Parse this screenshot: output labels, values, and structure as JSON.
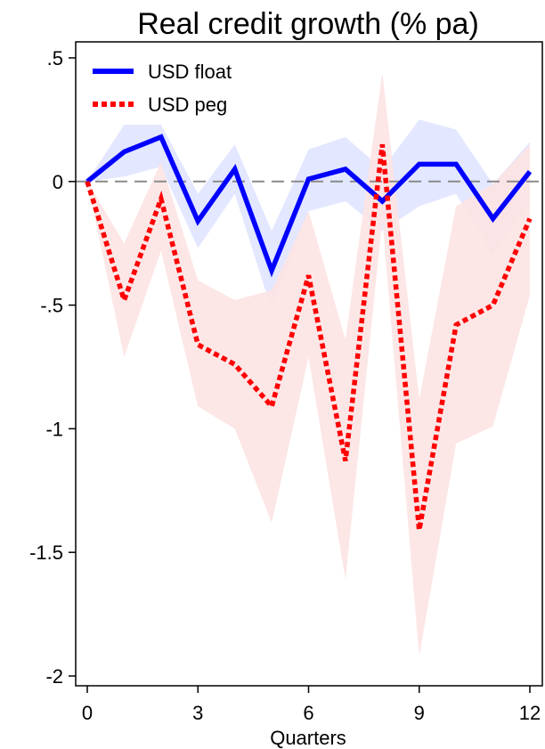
{
  "chart_data": {
    "type": "line",
    "title": "Real credit growth (% pa)",
    "xlabel": "Quarters",
    "ylabel": "",
    "xlim": [
      0,
      12
    ],
    "ylim": [
      -2,
      0.5
    ],
    "x_ticks": [
      0,
      3,
      6,
      9,
      12
    ],
    "x_tick_labels": [
      "0",
      "3",
      "6",
      "9",
      "12"
    ],
    "y_ticks": [
      0.5,
      0,
      -0.5,
      -1,
      -1.5,
      -2
    ],
    "y_tick_labels": [
      ".5",
      "0",
      "-.5",
      "-1",
      "-1.5",
      "-2"
    ],
    "zero_line": true,
    "grid": false,
    "legend_position": "top-left",
    "x": [
      0,
      1,
      2,
      3,
      4,
      5,
      6,
      7,
      8,
      9,
      10,
      11,
      12
    ],
    "series": [
      {
        "name": "USD float",
        "color": "#0000ff",
        "band_color": "#e0e4ff",
        "style": "solid",
        "values": [
          0.0,
          0.12,
          0.18,
          -0.16,
          0.05,
          -0.36,
          0.01,
          0.05,
          -0.08,
          0.07,
          0.07,
          -0.15,
          0.04
        ],
        "lower": [
          0.0,
          0.02,
          0.06,
          -0.27,
          -0.05,
          -0.52,
          -0.12,
          -0.08,
          -0.2,
          -0.1,
          -0.05,
          -0.3,
          -0.09
        ],
        "upper": [
          0.0,
          0.23,
          0.23,
          -0.05,
          0.15,
          -0.2,
          0.13,
          0.18,
          0.05,
          0.25,
          0.21,
          -0.01,
          0.16
        ]
      },
      {
        "name": "USD peg",
        "color": "#ff0000",
        "band_color": "#fde3e3",
        "style": "dashed",
        "values": [
          0.0,
          -0.48,
          -0.07,
          -0.66,
          -0.74,
          -0.91,
          -0.38,
          -1.13,
          0.15,
          -1.41,
          -0.58,
          -0.5,
          -0.15
        ],
        "lower": [
          0.0,
          -0.71,
          -0.28,
          -0.91,
          -1.0,
          -1.38,
          -0.71,
          -1.61,
          -0.15,
          -1.92,
          -1.06,
          -0.99,
          -0.46
        ],
        "upper": [
          0.0,
          -0.25,
          0.08,
          -0.4,
          -0.48,
          -0.44,
          -0.12,
          -0.64,
          0.44,
          -0.88,
          -0.1,
          -0.01,
          0.15
        ]
      }
    ]
  }
}
